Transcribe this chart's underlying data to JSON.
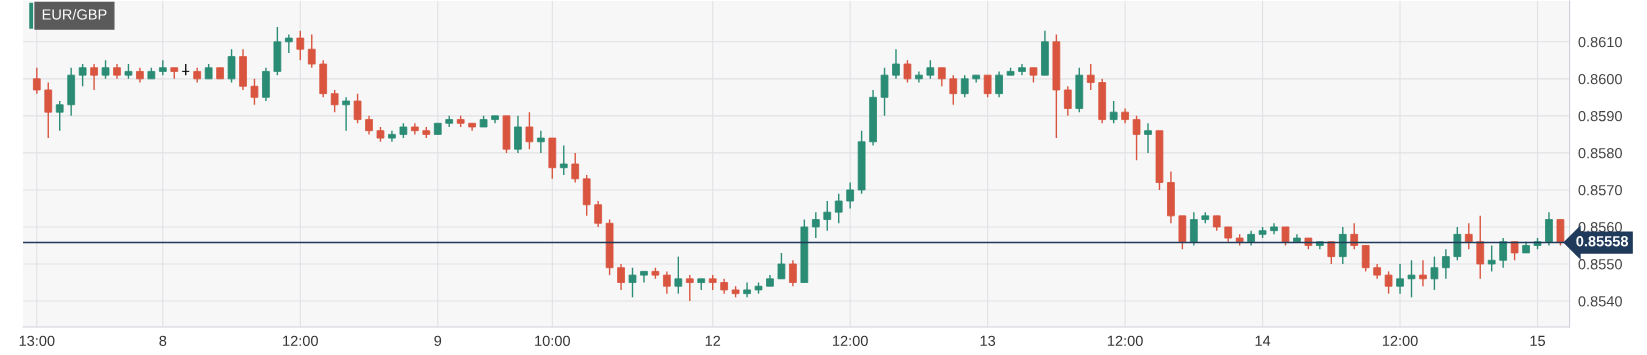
{
  "chart_data": {
    "type": "candlestick",
    "title": "EUR/GBP",
    "categories": [
      "13:00",
      null,
      null,
      null,
      null,
      null,
      null,
      null,
      null,
      null,
      null,
      "8",
      null,
      null,
      null,
      null,
      null,
      null,
      null,
      null,
      null,
      null,
      null,
      "12:00",
      null,
      null,
      null,
      null,
      null,
      null,
      null,
      null,
      null,
      null,
      null,
      "9",
      null,
      null,
      null,
      null,
      null,
      null,
      null,
      null,
      null,
      "10:00",
      null,
      null,
      null,
      null,
      null,
      null,
      null,
      null,
      null,
      null,
      null,
      null,
      null,
      "12",
      null,
      null,
      null,
      null,
      null,
      null,
      null,
      null,
      null,
      null,
      null,
      "12:00",
      null,
      null,
      null,
      null,
      null,
      null,
      null,
      null,
      null,
      null,
      null,
      "13",
      null,
      null,
      null,
      null,
      null,
      null,
      null,
      null,
      null,
      null,
      null,
      "12:00",
      null,
      null,
      null,
      null,
      null,
      null,
      null,
      null,
      null,
      null,
      null,
      "14",
      null,
      null,
      null,
      null,
      null,
      null,
      null,
      null,
      null,
      null,
      null,
      "12:00",
      null,
      null,
      null,
      null,
      null,
      null,
      null,
      null,
      null,
      null,
      null,
      "15",
      null,
      null
    ],
    "ohlc": [
      [
        0.86,
        0.8603,
        0.8596,
        0.8597
      ],
      [
        0.8597,
        0.8599,
        0.8584,
        0.8591
      ],
      [
        0.8591,
        0.8594,
        0.8586,
        0.8593
      ],
      [
        0.8593,
        0.8603,
        0.859,
        0.8601
      ],
      [
        0.8601,
        0.8604,
        0.8598,
        0.8603
      ],
      [
        0.8603,
        0.8604,
        0.8597,
        0.8601
      ],
      [
        0.8601,
        0.8605,
        0.86,
        0.8603
      ],
      [
        0.8603,
        0.8604,
        0.86,
        0.8601
      ],
      [
        0.8601,
        0.8604,
        0.86,
        0.8602
      ],
      [
        0.8602,
        0.8603,
        0.8599,
        0.86
      ],
      [
        0.86,
        0.8603,
        0.86,
        0.8602
      ],
      [
        0.8602,
        0.8605,
        0.8601,
        0.8603
      ],
      [
        0.8603,
        0.8603,
        0.86,
        0.8602
      ],
      [
        0.8602,
        0.8604,
        0.8601,
        0.8602
      ],
      [
        0.8602,
        0.8603,
        0.8599,
        0.86
      ],
      [
        0.86,
        0.8604,
        0.86,
        0.8603
      ],
      [
        0.8603,
        0.8603,
        0.86,
        0.86
      ],
      [
        0.86,
        0.8608,
        0.8599,
        0.8606
      ],
      [
        0.8606,
        0.8608,
        0.8597,
        0.8598
      ],
      [
        0.8598,
        0.86,
        0.8593,
        0.8595
      ],
      [
        0.8595,
        0.8603,
        0.8594,
        0.8602
      ],
      [
        0.8602,
        0.8614,
        0.8601,
        0.861
      ],
      [
        0.861,
        0.8612,
        0.8607,
        0.8611
      ],
      [
        0.8611,
        0.8613,
        0.8605,
        0.8608
      ],
      [
        0.8608,
        0.8612,
        0.8603,
        0.8604
      ],
      [
        0.8604,
        0.8605,
        0.8595,
        0.8596
      ],
      [
        0.8596,
        0.8597,
        0.8591,
        0.8593
      ],
      [
        0.8593,
        0.8595,
        0.8586,
        0.8594
      ],
      [
        0.8594,
        0.8596,
        0.8588,
        0.8589
      ],
      [
        0.8589,
        0.859,
        0.8585,
        0.8586
      ],
      [
        0.8586,
        0.8587,
        0.8583,
        0.8584
      ],
      [
        0.8584,
        0.8586,
        0.8583,
        0.8585
      ],
      [
        0.8585,
        0.8588,
        0.8584,
        0.8587
      ],
      [
        0.8587,
        0.8588,
        0.8585,
        0.8586
      ],
      [
        0.8586,
        0.8587,
        0.8584,
        0.8585
      ],
      [
        0.8585,
        0.8588,
        0.8585,
        0.8588
      ],
      [
        0.8588,
        0.859,
        0.8587,
        0.8589
      ],
      [
        0.8589,
        0.859,
        0.8587,
        0.8588
      ],
      [
        0.8588,
        0.8588,
        0.8586,
        0.8587
      ],
      [
        0.8587,
        0.859,
        0.8587,
        0.8589
      ],
      [
        0.8589,
        0.859,
        0.8588,
        0.859
      ],
      [
        0.859,
        0.859,
        0.858,
        0.8581
      ],
      [
        0.8581,
        0.859,
        0.858,
        0.8587
      ],
      [
        0.8587,
        0.8591,
        0.8581,
        0.8583
      ],
      [
        0.8583,
        0.8586,
        0.858,
        0.8584
      ],
      [
        0.8584,
        0.8584,
        0.8573,
        0.8576
      ],
      [
        0.8576,
        0.8582,
        0.8574,
        0.8577
      ],
      [
        0.8577,
        0.858,
        0.8572,
        0.8573
      ],
      [
        0.8573,
        0.8574,
        0.8563,
        0.8566
      ],
      [
        0.8566,
        0.8567,
        0.856,
        0.8561
      ],
      [
        0.8561,
        0.8562,
        0.8547,
        0.8549
      ],
      [
        0.8549,
        0.855,
        0.8543,
        0.8545
      ],
      [
        0.8545,
        0.8549,
        0.8541,
        0.8547
      ],
      [
        0.8547,
        0.8548,
        0.8545,
        0.8548
      ],
      [
        0.8548,
        0.8549,
        0.8546,
        0.8547
      ],
      [
        0.8547,
        0.8548,
        0.8542,
        0.8544
      ],
      [
        0.8544,
        0.8552,
        0.8542,
        0.8546
      ],
      [
        0.8546,
        0.8547,
        0.854,
        0.8545
      ],
      [
        0.8545,
        0.8546,
        0.8543,
        0.8546
      ],
      [
        0.8546,
        0.8547,
        0.8543,
        0.8545
      ],
      [
        0.8545,
        0.8546,
        0.8542,
        0.8543
      ],
      [
        0.8543,
        0.8544,
        0.8541,
        0.8542
      ],
      [
        0.8542,
        0.8545,
        0.8541,
        0.8543
      ],
      [
        0.8543,
        0.8545,
        0.8542,
        0.8544
      ],
      [
        0.8544,
        0.8547,
        0.8544,
        0.8546
      ],
      [
        0.8546,
        0.8553,
        0.8546,
        0.855
      ],
      [
        0.855,
        0.8551,
        0.8544,
        0.8545
      ],
      [
        0.8545,
        0.8562,
        0.8545,
        0.856
      ],
      [
        0.856,
        0.8564,
        0.8557,
        0.8562
      ],
      [
        0.8562,
        0.8567,
        0.8559,
        0.8564
      ],
      [
        0.8564,
        0.8569,
        0.8561,
        0.8567
      ],
      [
        0.8567,
        0.8572,
        0.8565,
        0.857
      ],
      [
        0.857,
        0.8586,
        0.8569,
        0.8583
      ],
      [
        0.8583,
        0.8597,
        0.8582,
        0.8595
      ],
      [
        0.8595,
        0.8603,
        0.859,
        0.8601
      ],
      [
        0.8601,
        0.8608,
        0.86,
        0.8604
      ],
      [
        0.8604,
        0.8605,
        0.8599,
        0.86
      ],
      [
        0.86,
        0.8602,
        0.8599,
        0.8601
      ],
      [
        0.8601,
        0.8605,
        0.86,
        0.8603
      ],
      [
        0.8603,
        0.8603,
        0.8598,
        0.86
      ],
      [
        0.86,
        0.8601,
        0.8593,
        0.8596
      ],
      [
        0.8596,
        0.8601,
        0.8595,
        0.86
      ],
      [
        0.86,
        0.8601,
        0.8599,
        0.8601
      ],
      [
        0.8601,
        0.8601,
        0.8595,
        0.8596
      ],
      [
        0.8596,
        0.8602,
        0.8595,
        0.8601
      ],
      [
        0.8601,
        0.8603,
        0.8601,
        0.8602
      ],
      [
        0.8602,
        0.8604,
        0.8601,
        0.8603
      ],
      [
        0.8603,
        0.8603,
        0.8599,
        0.8601
      ],
      [
        0.8601,
        0.8613,
        0.8601,
        0.861
      ],
      [
        0.861,
        0.8612,
        0.8584,
        0.8597
      ],
      [
        0.8597,
        0.8598,
        0.859,
        0.8592
      ],
      [
        0.8592,
        0.8603,
        0.8591,
        0.8601
      ],
      [
        0.8601,
        0.8604,
        0.8597,
        0.8599
      ],
      [
        0.8599,
        0.86,
        0.8588,
        0.8589
      ],
      [
        0.8589,
        0.8594,
        0.8588,
        0.8591
      ],
      [
        0.8591,
        0.8592,
        0.8588,
        0.8589
      ],
      [
        0.8589,
        0.859,
        0.8578,
        0.8585
      ],
      [
        0.8585,
        0.8588,
        0.858,
        0.8586
      ],
      [
        0.8586,
        0.8586,
        0.857,
        0.8572
      ],
      [
        0.8572,
        0.8575,
        0.8561,
        0.8563
      ],
      [
        0.8563,
        0.8563,
        0.8554,
        0.8556
      ],
      [
        0.8556,
        0.8564,
        0.8555,
        0.8562
      ],
      [
        0.8562,
        0.8564,
        0.8561,
        0.8563
      ],
      [
        0.8563,
        0.8563,
        0.8559,
        0.856
      ],
      [
        0.856,
        0.856,
        0.8556,
        0.8557
      ],
      [
        0.8557,
        0.8558,
        0.8555,
        0.8556
      ],
      [
        0.8556,
        0.8559,
        0.8555,
        0.8558
      ],
      [
        0.8558,
        0.856,
        0.8557,
        0.8559
      ],
      [
        0.8559,
        0.8561,
        0.8558,
        0.856
      ],
      [
        0.856,
        0.856,
        0.8555,
        0.8556
      ],
      [
        0.8556,
        0.8558,
        0.8556,
        0.8557
      ],
      [
        0.8557,
        0.8557,
        0.8554,
        0.8555
      ],
      [
        0.8555,
        0.8556,
        0.8554,
        0.8556
      ],
      [
        0.8556,
        0.8556,
        0.855,
        0.8552
      ],
      [
        0.8552,
        0.856,
        0.855,
        0.8558
      ],
      [
        0.8558,
        0.8561,
        0.8554,
        0.8555
      ],
      [
        0.8555,
        0.8555,
        0.8548,
        0.8549
      ],
      [
        0.8549,
        0.855,
        0.8546,
        0.8547
      ],
      [
        0.8547,
        0.8548,
        0.8542,
        0.8544
      ],
      [
        0.8544,
        0.855,
        0.8542,
        0.8546
      ],
      [
        0.8546,
        0.8551,
        0.8541,
        0.8547
      ],
      [
        0.8547,
        0.8551,
        0.8544,
        0.8546
      ],
      [
        0.8546,
        0.8552,
        0.8543,
        0.8549
      ],
      [
        0.8549,
        0.8554,
        0.8546,
        0.8552
      ],
      [
        0.8552,
        0.856,
        0.8551,
        0.8558
      ],
      [
        0.8558,
        0.8561,
        0.8554,
        0.8556
      ],
      [
        0.8556,
        0.8563,
        0.8546,
        0.855
      ],
      [
        0.855,
        0.8555,
        0.8548,
        0.8551
      ],
      [
        0.8551,
        0.8557,
        0.8549,
        0.8556
      ],
      [
        0.8556,
        0.8556,
        0.8551,
        0.8553
      ],
      [
        0.8553,
        0.8556,
        0.8553,
        0.8555
      ],
      [
        0.8555,
        0.8557,
        0.8554,
        0.8556
      ],
      [
        0.8556,
        0.8564,
        0.8555,
        0.8562
      ],
      [
        0.8562,
        0.8562,
        0.8555,
        0.85558
      ]
    ],
    "colors": [
      "#d9553f",
      "#d9553f",
      "#2a8c74",
      "#2a8c74",
      "#2a8c74",
      "#d9553f",
      "#2a8c74",
      "#d9553f",
      "#2a8c74",
      "#d9553f",
      "#2a8c74",
      "#2a8c74",
      "#d9553f",
      "#111111",
      "#d9553f",
      "#2a8c74",
      "#d9553f",
      "#2a8c74",
      "#d9553f",
      "#d9553f",
      "#2a8c74",
      "#2a8c74",
      "#2a8c74",
      "#d9553f",
      "#d9553f",
      "#d9553f",
      "#d9553f",
      "#2a8c74",
      "#d9553f",
      "#d9553f",
      "#d9553f",
      "#2a8c74",
      "#2a8c74",
      "#d9553f",
      "#d9553f",
      "#2a8c74",
      "#2a8c74",
      "#d9553f",
      "#d9553f",
      "#2a8c74",
      "#2a8c74",
      "#d9553f",
      "#2a8c74",
      "#d9553f",
      "#2a8c74",
      "#d9553f",
      "#2a8c74",
      "#d9553f",
      "#d9553f",
      "#d9553f",
      "#d9553f",
      "#d9553f",
      "#2a8c74",
      "#2a8c74",
      "#d9553f",
      "#d9553f",
      "#2a8c74",
      "#d9553f",
      "#2a8c74",
      "#d9553f",
      "#d9553f",
      "#d9553f",
      "#2a8c74",
      "#2a8c74",
      "#2a8c74",
      "#2a8c74",
      "#d9553f",
      "#2a8c74",
      "#2a8c74",
      "#2a8c74",
      "#2a8c74",
      "#2a8c74",
      "#2a8c74",
      "#2a8c74",
      "#2a8c74",
      "#2a8c74",
      "#d9553f",
      "#2a8c74",
      "#2a8c74",
      "#d9553f",
      "#d9553f",
      "#2a8c74",
      "#2a8c74",
      "#d9553f",
      "#2a8c74",
      "#2a8c74",
      "#2a8c74",
      "#d9553f",
      "#2a8c74",
      "#d9553f",
      "#d9553f",
      "#2a8c74",
      "#d9553f",
      "#d9553f",
      "#2a8c74",
      "#d9553f",
      "#d9553f",
      "#2a8c74",
      "#d9553f",
      "#d9553f",
      "#d9553f",
      "#2a8c74",
      "#2a8c74",
      "#d9553f",
      "#d9553f",
      "#d9553f",
      "#2a8c74",
      "#2a8c74",
      "#2a8c74",
      "#d9553f",
      "#2a8c74",
      "#d9553f",
      "#2a8c74",
      "#d9553f",
      "#2a8c74",
      "#d9553f",
      "#d9553f",
      "#d9553f",
      "#d9553f",
      "#2a8c74",
      "#2a8c74",
      "#d9553f",
      "#2a8c74",
      "#2a8c74",
      "#2a8c74",
      "#d9553f",
      "#d9553f",
      "#2a8c74",
      "#2a8c74",
      "#d9553f",
      "#2a8c74",
      "#2a8c74",
      "#2a8c74",
      "#d9553f"
    ],
    "ylim": [
      0.8533,
      0.8621
    ],
    "yticks": [
      {
        "value": 0.854,
        "label": "0.8540"
      },
      {
        "value": 0.855,
        "label": "0.8550"
      },
      {
        "value": 0.856,
        "label": "0.8560"
      },
      {
        "value": 0.857,
        "label": "0.8570"
      },
      {
        "value": 0.858,
        "label": "0.8580"
      },
      {
        "value": 0.859,
        "label": "0.8590"
      },
      {
        "value": 0.86,
        "label": "0.8600"
      },
      {
        "value": 0.861,
        "label": "0.8610"
      }
    ],
    "ref_lines": [
      {
        "axis": "y",
        "value": 0.85558,
        "label": "0.85558",
        "color": "#1f3a5a"
      }
    ],
    "grid": true
  }
}
